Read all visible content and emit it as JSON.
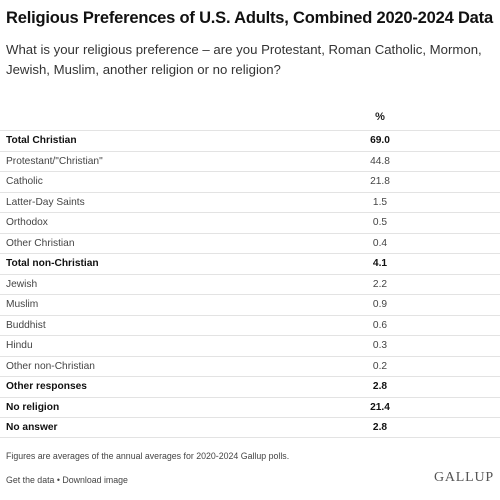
{
  "header": {
    "title": "Religious Preferences of U.S. Adults, Combined 2020-2024 Data",
    "subtitle": "What is your religious preference – are you Protestant, Roman Catholic, Mormon, Jewish, Muslim, another religion or no religion?"
  },
  "chart_data": {
    "type": "table",
    "column_header": "%",
    "rows": [
      {
        "label": "Total Christian",
        "value": "69.0",
        "bold": true
      },
      {
        "label": "Protestant/\"Christian\"",
        "value": "44.8",
        "bold": false
      },
      {
        "label": "Catholic",
        "value": "21.8",
        "bold": false
      },
      {
        "label": "Latter-Day Saints",
        "value": "1.5",
        "bold": false
      },
      {
        "label": "Orthodox",
        "value": "0.5",
        "bold": false
      },
      {
        "label": "Other Christian",
        "value": "0.4",
        "bold": false
      },
      {
        "label": "Total non-Christian",
        "value": "4.1",
        "bold": true
      },
      {
        "label": "Jewish",
        "value": "2.2",
        "bold": false
      },
      {
        "label": "Muslim",
        "value": "0.9",
        "bold": false
      },
      {
        "label": "Buddhist",
        "value": "0.6",
        "bold": false
      },
      {
        "label": "Hindu",
        "value": "0.3",
        "bold": false
      },
      {
        "label": "Other non-Christian",
        "value": "0.2",
        "bold": false
      },
      {
        "label": "Other responses",
        "value": "2.8",
        "bold": true
      },
      {
        "label": "No religion",
        "value": "21.4",
        "bold": true
      },
      {
        "label": "No answer",
        "value": "2.8",
        "bold": true
      }
    ]
  },
  "footer": {
    "note": "Figures are averages of the annual averages for 2020-2024 Gallup polls.",
    "get_data": "Get the data",
    "separator": " • ",
    "download": "Download image",
    "logo": "GALLUP"
  }
}
